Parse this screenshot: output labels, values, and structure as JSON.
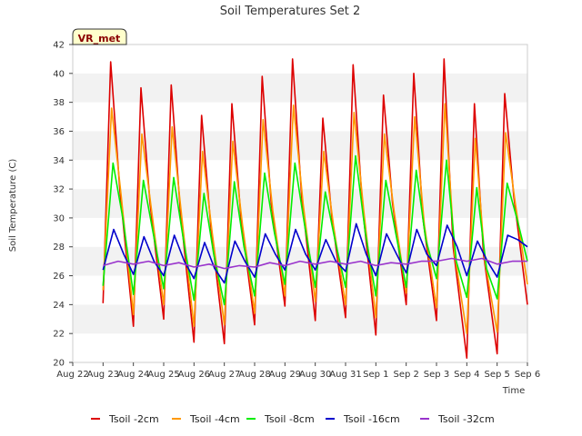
{
  "chart_data": {
    "type": "line",
    "title": "Soil Temperatures Set 2",
    "xlabel": "Time",
    "ylabel": "Soil Temperature (C)",
    "ylim": [
      20,
      42
    ],
    "yticks": [
      20,
      22,
      24,
      26,
      28,
      30,
      32,
      34,
      36,
      38,
      40,
      42
    ],
    "xlim": [
      "Aug 22",
      "Sep 6"
    ],
    "xticks": [
      "Aug 22",
      "Aug 23",
      "Aug 24",
      "Aug 25",
      "Aug 26",
      "Aug 27",
      "Aug 28",
      "Aug 29",
      "Aug 30",
      "Aug 31",
      "Sep 1",
      "Sep 2",
      "Sep 3",
      "Sep 4",
      "Sep 5",
      "Sep 6"
    ],
    "grid": "horizontal banded",
    "legend_position": "bottom",
    "badge": "VR_met",
    "series": [
      {
        "name": "Tsoil -2cm",
        "color": "#dd0000",
        "x_units": "days since Aug 22",
        "x": [
          1.0,
          1.25,
          1.55,
          2.0,
          2.25,
          2.55,
          3.0,
          3.25,
          3.55,
          4.0,
          4.25,
          4.55,
          5.0,
          5.25,
          5.55,
          6.0,
          6.25,
          6.55,
          7.0,
          7.25,
          7.55,
          8.0,
          8.25,
          8.55,
          9.0,
          9.25,
          9.55,
          10.0,
          10.25,
          10.55,
          11.0,
          11.25,
          11.55,
          12.0,
          12.25,
          12.55,
          13.0,
          13.25,
          13.55,
          14.0,
          14.25,
          14.55,
          15.0
        ],
        "y": [
          24.1,
          40.8,
          32.0,
          22.5,
          39.0,
          31.0,
          23.0,
          39.2,
          30.5,
          21.4,
          37.1,
          29.5,
          21.3,
          37.9,
          30.0,
          22.6,
          39.8,
          31.0,
          23.9,
          41.0,
          31.5,
          22.9,
          36.9,
          30.0,
          23.1,
          40.6,
          31.0,
          21.9,
          38.5,
          31.0,
          24.0,
          40.0,
          30.0,
          22.9,
          41.0,
          28.0,
          20.3,
          37.9,
          27.5,
          20.6,
          38.6,
          31.5,
          24.0
        ]
      },
      {
        "name": "Tsoil -4cm",
        "color": "#ff9900",
        "x_units": "days since Aug 22",
        "x": [
          1.0,
          1.28,
          1.6,
          2.0,
          2.28,
          2.6,
          3.0,
          3.28,
          3.6,
          4.0,
          4.28,
          4.6,
          5.0,
          5.28,
          5.6,
          6.0,
          6.28,
          6.6,
          7.0,
          7.28,
          7.6,
          8.0,
          8.28,
          8.6,
          9.0,
          9.28,
          9.6,
          10.0,
          10.28,
          10.6,
          11.0,
          11.28,
          11.6,
          12.0,
          12.28,
          12.6,
          13.0,
          13.28,
          13.6,
          14.0,
          14.28,
          14.6,
          15.0
        ],
        "y": [
          25.0,
          37.6,
          31.5,
          23.3,
          35.8,
          30.5,
          24.0,
          36.3,
          30.0,
          22.5,
          34.6,
          29.0,
          22.6,
          35.3,
          29.5,
          23.4,
          36.8,
          30.5,
          24.6,
          37.8,
          31.0,
          24.2,
          34.6,
          29.5,
          24.0,
          37.3,
          30.5,
          23.1,
          35.8,
          30.5,
          24.8,
          37.0,
          29.5,
          23.8,
          37.9,
          27.5,
          22.0,
          35.5,
          27.0,
          22.1,
          35.9,
          31.0,
          25.4
        ]
      },
      {
        "name": "Tsoil -8cm",
        "color": "#00ee00",
        "x_units": "days since Aug 22",
        "x": [
          1.0,
          1.33,
          1.65,
          2.0,
          2.33,
          2.65,
          3.0,
          3.33,
          3.65,
          4.0,
          4.33,
          4.65,
          5.0,
          5.33,
          5.65,
          6.0,
          6.33,
          6.65,
          7.0,
          7.33,
          7.65,
          8.0,
          8.33,
          8.65,
          9.0,
          9.33,
          9.65,
          10.0,
          10.33,
          10.65,
          11.0,
          11.33,
          11.65,
          12.0,
          12.33,
          12.65,
          13.0,
          13.33,
          13.65,
          14.0,
          14.33,
          14.65,
          15.0
        ],
        "y": [
          25.3,
          33.8,
          30.0,
          24.7,
          32.6,
          29.0,
          25.1,
          32.8,
          28.5,
          24.3,
          31.7,
          27.5,
          24.0,
          32.5,
          28.0,
          24.6,
          33.1,
          29.0,
          25.4,
          33.8,
          29.5,
          25.2,
          31.8,
          28.5,
          25.2,
          34.3,
          29.0,
          24.6,
          32.6,
          29.0,
          25.2,
          33.3,
          28.5,
          25.8,
          34.0,
          27.0,
          24.5,
          32.1,
          26.5,
          24.4,
          32.4,
          30.0,
          27.0
        ]
      },
      {
        "name": "Tsoil -16cm",
        "color": "#0000cc",
        "x_units": "days since Aug 22",
        "x": [
          1.0,
          1.35,
          1.68,
          2.0,
          2.35,
          2.68,
          3.0,
          3.35,
          3.68,
          4.0,
          4.35,
          4.68,
          5.0,
          5.35,
          5.68,
          6.0,
          6.35,
          6.68,
          7.0,
          7.35,
          7.68,
          8.0,
          8.35,
          8.68,
          9.0,
          9.35,
          9.68,
          10.0,
          10.35,
          10.68,
          11.0,
          11.35,
          11.68,
          12.0,
          12.35,
          12.68,
          13.0,
          13.35,
          13.68,
          14.0,
          14.35,
          14.68,
          15.0
        ],
        "y": [
          26.4,
          29.2,
          27.5,
          26.1,
          28.7,
          27.0,
          26.0,
          28.8,
          27.0,
          25.8,
          28.3,
          26.5,
          25.5,
          28.4,
          27.0,
          25.9,
          28.9,
          27.5,
          26.4,
          29.2,
          27.5,
          26.4,
          28.5,
          27.0,
          26.3,
          29.6,
          27.5,
          26.0,
          28.9,
          27.5,
          26.2,
          29.2,
          27.5,
          26.7,
          29.5,
          28.0,
          26.0,
          28.4,
          27.0,
          25.9,
          28.8,
          28.5,
          28.0
        ]
      },
      {
        "name": "Tsoil -32cm",
        "color": "#9933cc",
        "x_units": "days since Aug 22",
        "x": [
          1.0,
          1.5,
          2.0,
          2.5,
          3.0,
          3.5,
          4.0,
          4.5,
          5.0,
          5.5,
          6.0,
          6.5,
          7.0,
          7.5,
          8.0,
          8.5,
          9.0,
          9.5,
          10.0,
          10.5,
          11.0,
          11.5,
          12.0,
          12.5,
          13.0,
          13.5,
          14.0,
          14.5,
          15.0
        ],
        "y": [
          26.7,
          27.0,
          26.8,
          27.0,
          26.7,
          26.9,
          26.6,
          26.8,
          26.5,
          26.7,
          26.6,
          26.9,
          26.7,
          27.0,
          26.8,
          27.0,
          26.8,
          27.0,
          26.7,
          26.9,
          26.8,
          27.0,
          27.0,
          27.2,
          27.0,
          27.2,
          26.8,
          27.0,
          27.0
        ]
      }
    ]
  }
}
